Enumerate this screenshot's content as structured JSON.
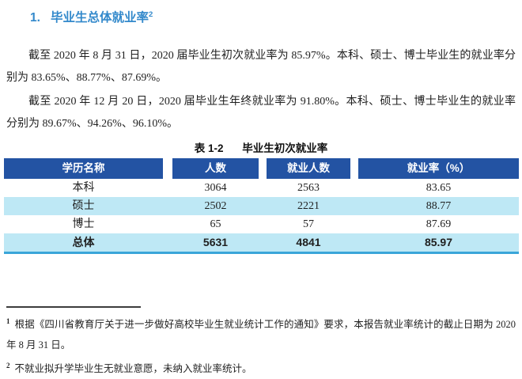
{
  "heading": {
    "number": "1.",
    "title": "毕业生总体就业率",
    "footnote_ref": "2"
  },
  "paragraphs": [
    "截至 2020 年 8 月 31 日，2020 届毕业生初次就业率为 85.97%。本科、硕士、博士毕业生的就业率分别为 83.65%、88.77%、87.69%。",
    "截至 2020 年 12 月 20 日，2020 届毕业生年终就业率为 91.80%。本科、硕士、博士毕业生的就业率分别为 89.67%、94.26%、96.10%。"
  ],
  "table": {
    "caption_label": "表 1-2",
    "caption_title": "毕业生初次就业率",
    "headers": [
      "学历名称",
      "人数",
      "就业人数",
      "就业率（%）"
    ],
    "rows": [
      {
        "cells": [
          "本科",
          "3064",
          "2563",
          "83.65"
        ],
        "highlight": false,
        "bold": false
      },
      {
        "cells": [
          "硕士",
          "2502",
          "2221",
          "88.77"
        ],
        "highlight": true,
        "bold": false
      },
      {
        "cells": [
          "博士",
          "65",
          "57",
          "87.69"
        ],
        "highlight": false,
        "bold": false
      },
      {
        "cells": [
          "总体",
          "5631",
          "4841",
          "85.97"
        ],
        "highlight": true,
        "bold": true
      }
    ]
  },
  "footnotes": [
    {
      "ref": "1",
      "text": "根据《四川省教育厅关于进一步做好高校毕业生就业统计工作的通知》要求，本报告就业率统计的截止日期为 2020 年 8 月 31 日。"
    },
    {
      "ref": "2",
      "text": "不就业拟升学毕业生无就业意愿，未纳入就业率统计。"
    }
  ],
  "colors": {
    "heading_blue": "#3389CB",
    "table_header_bg": "#2353A3",
    "row_highlight": "#BEE8F5",
    "table_bottom_border": "#3AA5D9",
    "text": "#1F1F1F"
  }
}
